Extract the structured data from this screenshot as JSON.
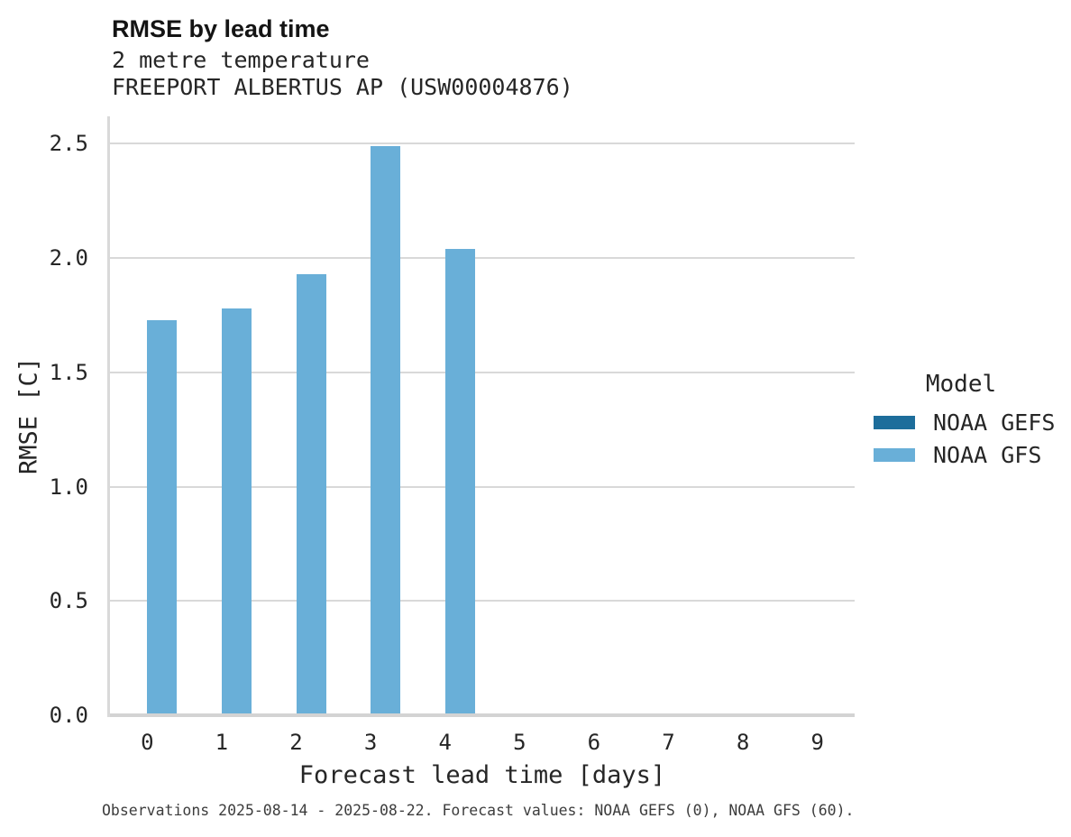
{
  "chart_data": {
    "type": "bar",
    "title": "RMSE by lead time",
    "subtitle1": "2 metre temperature",
    "subtitle2": "FREEPORT ALBERTUS AP (USW00004876)",
    "xlabel": "Forecast lead time [days]",
    "ylabel": "RMSE [C]",
    "categories": [
      "0",
      "1",
      "2",
      "3",
      "4",
      "5",
      "6",
      "7",
      "8",
      "9"
    ],
    "series": [
      {
        "name": "NOAA GEFS",
        "color": "#1d6d9b",
        "values": [
          null,
          null,
          null,
          null,
          null,
          null,
          null,
          null,
          null,
          null
        ]
      },
      {
        "name": "NOAA GFS",
        "color": "#69afd8",
        "values": [
          1.73,
          1.78,
          1.93,
          2.49,
          2.04,
          null,
          null,
          null,
          null,
          null
        ]
      }
    ],
    "ylim": [
      0,
      2.62
    ],
    "yticks": [
      0.0,
      0.5,
      1.0,
      1.5,
      2.0,
      2.5
    ],
    "yticklabels": [
      "0.0",
      "0.5",
      "1.0",
      "1.5",
      "2.0",
      "2.5"
    ],
    "grid": true,
    "legend_position": "right",
    "legend": {
      "title": "Model",
      "entries": [
        {
          "label": "NOAA GEFS",
          "color": "#1d6d9b"
        },
        {
          "label": "NOAA GFS",
          "color": "#69afd8"
        }
      ]
    },
    "footnote": "Observations 2025-08-14 - 2025-08-22. Forecast values: NOAA GEFS (0), NOAA GFS (60).",
    "colors": {
      "gridline": "#d9d9d9",
      "axis_line": "#d3d3d3",
      "text": "#262626",
      "footnote_text": "#3d3d3d"
    }
  }
}
